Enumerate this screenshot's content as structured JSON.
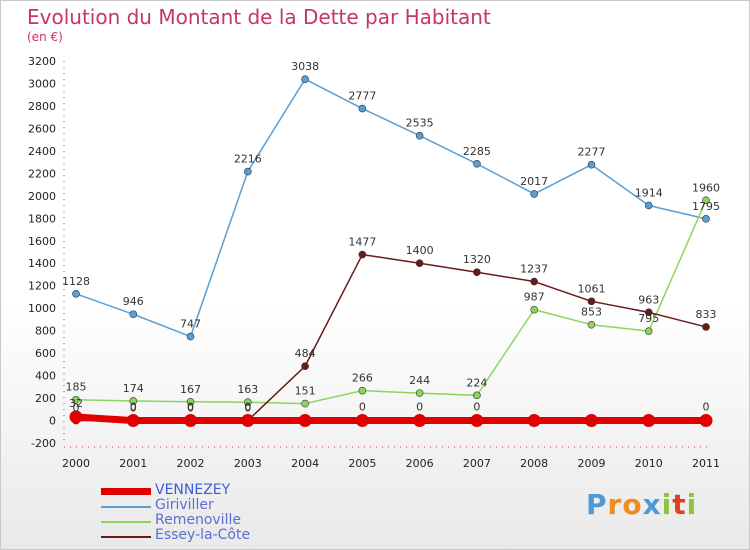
{
  "title": "Evolution du Montant de la Dette par Habitant",
  "unit": "(en €)",
  "logo": {
    "letters": [
      "P",
      "r",
      "o",
      "x",
      "i",
      "t",
      "i"
    ],
    "colors": [
      "#4c9ad6",
      "#f08c1e",
      "#f08c1e",
      "#4c9ad6",
      "#8cc63f",
      "#e04020",
      "#8cc63f"
    ]
  },
  "chart_data": {
    "type": "line",
    "title": "Evolution du Montant de la Dette par Habitant",
    "ylabel": "(en €)",
    "xlabel": "",
    "categories": [
      "2000",
      "2001",
      "2002",
      "2003",
      "2004",
      "2005",
      "2006",
      "2007",
      "2008",
      "2009",
      "2010",
      "2011"
    ],
    "yticks": [
      -200,
      0,
      200,
      400,
      600,
      800,
      1000,
      1200,
      1400,
      1600,
      1800,
      2000,
      2200,
      2400,
      2600,
      2800,
      3000,
      3200
    ],
    "ylim": [
      -200,
      3200
    ],
    "grid": false,
    "legend_position": "bottom-left",
    "series": [
      {
        "name": "VENNEZEY",
        "color": "#e00000",
        "values": [
          32,
          0,
          0,
          0,
          0,
          0,
          0,
          0,
          0,
          0,
          0,
          0
        ],
        "labels": [
          "32",
          "0",
          "0",
          "0",
          "",
          "0",
          "0",
          "0",
          "",
          "",
          "",
          "0"
        ]
      },
      {
        "name": "Giriviller",
        "color": "#5a9fd4",
        "values": [
          1128,
          946,
          747,
          2216,
          3038,
          2777,
          2535,
          2285,
          2017,
          2277,
          1914,
          1795
        ],
        "labels": [
          "1128",
          "946",
          "747",
          "2216",
          "3038",
          "2777",
          "2535",
          "2285",
          "2017",
          "2277",
          "1914",
          "1795"
        ]
      },
      {
        "name": "Remenoville",
        "color": "#8ed45a",
        "values": [
          185,
          174,
          167,
          163,
          151,
          266,
          244,
          224,
          987,
          853,
          795,
          1960
        ],
        "labels": [
          "185",
          "174",
          "167",
          "163",
          "151",
          "266",
          "244",
          "224",
          "987",
          "853",
          "795",
          "1960"
        ]
      },
      {
        "name": "Essey-la-Côte",
        "color": "#6b1a1a",
        "values": [
          0,
          0,
          0,
          0,
          484,
          1477,
          1400,
          1320,
          1237,
          1061,
          963,
          833
        ],
        "labels": [
          "0",
          "0",
          "0",
          "0",
          "484",
          "1477",
          "1400",
          "1320",
          "1237",
          "1061",
          "963",
          "833"
        ]
      }
    ]
  }
}
